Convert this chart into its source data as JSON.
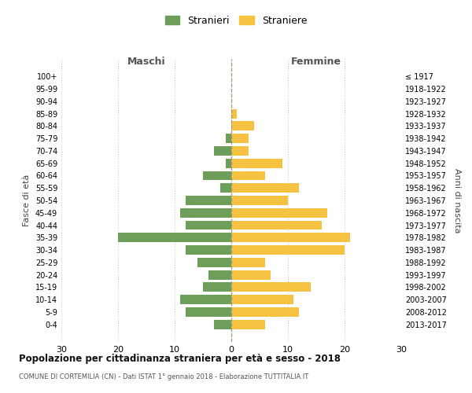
{
  "age_groups": [
    "100+",
    "95-99",
    "90-94",
    "85-89",
    "80-84",
    "75-79",
    "70-74",
    "65-69",
    "60-64",
    "55-59",
    "50-54",
    "45-49",
    "40-44",
    "35-39",
    "30-34",
    "25-29",
    "20-24",
    "15-19",
    "10-14",
    "5-9",
    "0-4"
  ],
  "birth_years": [
    "≤ 1917",
    "1918-1922",
    "1923-1927",
    "1928-1932",
    "1933-1937",
    "1938-1942",
    "1943-1947",
    "1948-1952",
    "1953-1957",
    "1958-1962",
    "1963-1967",
    "1968-1972",
    "1973-1977",
    "1978-1982",
    "1983-1987",
    "1988-1992",
    "1993-1997",
    "1998-2002",
    "2003-2007",
    "2008-2012",
    "2013-2017"
  ],
  "maschi": [
    0,
    0,
    0,
    0,
    0,
    1,
    3,
    1,
    5,
    2,
    8,
    9,
    8,
    20,
    8,
    6,
    4,
    5,
    9,
    8,
    3
  ],
  "femmine": [
    0,
    0,
    0,
    1,
    4,
    3,
    3,
    9,
    6,
    12,
    10,
    17,
    16,
    21,
    20,
    6,
    7,
    14,
    11,
    12,
    6
  ],
  "color_maschi": "#6d9e5a",
  "color_femmine": "#f5c242",
  "background_color": "#ffffff",
  "grid_color": "#cccccc",
  "title": "Popolazione per cittadinanza straniera per età e sesso - 2018",
  "subtitle": "COMUNE DI CORTEMILIA (CN) - Dati ISTAT 1° gennaio 2018 - Elaborazione TUTTITALIA.IT",
  "xlabel_left": "Maschi",
  "xlabel_right": "Femmine",
  "ylabel_left": "Fasce di età",
  "ylabel_right": "Anni di nascita",
  "legend_stranieri": "Stranieri",
  "legend_straniere": "Straniere",
  "xlim": 30,
  "bar_height": 0.75
}
